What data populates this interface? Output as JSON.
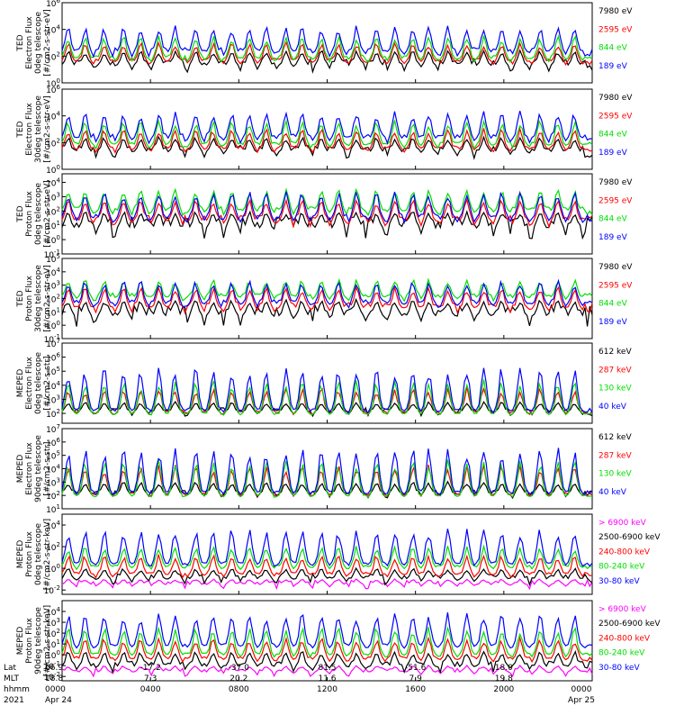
{
  "chart_data": {
    "type": "line",
    "x_axis": {
      "columns": [
        {
          "lat": "66.9",
          "mlt": "18.8",
          "hhmm": "0000",
          "date": "Apr 24"
        },
        {
          "lat": "-17.2",
          "mlt": "7.3",
          "hhmm": "0400",
          "date": ""
        },
        {
          "lat": "-37.0",
          "mlt": "20.2",
          "hhmm": "0800",
          "date": ""
        },
        {
          "lat": "81.5",
          "mlt": "11.6",
          "hhmm": "1200",
          "date": ""
        },
        {
          "lat": "-51.6",
          "mlt": "7.9",
          "hhmm": "1600",
          "date": ""
        },
        {
          "lat": "18.0",
          "mlt": "19.8",
          "hhmm": "2000",
          "date": ""
        },
        {
          "lat": "",
          "mlt": "",
          "hhmm": "0000",
          "date": "Apr 25"
        }
      ],
      "row_labels": {
        "lat": "Lat",
        "mlt": "MLT",
        "hhmm": "hhmm",
        "year": "2021"
      },
      "xlim_hours": [
        0,
        24
      ]
    },
    "panels": [
      {
        "ylabel": [
          "TED",
          "Electron Flux",
          "0deg telescope",
          "[#/cm2-s-str-eV]"
        ],
        "yticks": [
          "10^0",
          "10^2",
          "10^4",
          "10^6"
        ],
        "ylim_log10": [
          0,
          6
        ],
        "series": [
          {
            "name": "7980 eV",
            "color": "#000000",
            "base": 1.3,
            "peak": 2.4,
            "noise": 0.5
          },
          {
            "name": "2595 eV",
            "color": "#ff0000",
            "base": 1.6,
            "peak": 3.0,
            "noise": 0.25
          },
          {
            "name": "844 eV",
            "color": "#00dd00",
            "base": 1.8,
            "peak": 3.5,
            "noise": 0.25
          },
          {
            "name": "189 eV",
            "color": "#0000ff",
            "base": 2.3,
            "peak": 4.2,
            "noise": 0.35
          }
        ]
      },
      {
        "ylabel": [
          "TED",
          "Electron Flux",
          "30deg telescope",
          "[#/cm2-s-str-eV]"
        ],
        "yticks": [
          "10^0",
          "10^2",
          "10^4",
          "10^6"
        ],
        "ylim_log10": [
          0,
          6
        ],
        "series": [
          {
            "name": "7980 eV",
            "color": "#000000",
            "base": 1.3,
            "peak": 2.4,
            "noise": 0.5
          },
          {
            "name": "2595 eV",
            "color": "#ff0000",
            "base": 1.5,
            "peak": 3.0,
            "noise": 0.25
          },
          {
            "name": "844 eV",
            "color": "#00dd00",
            "base": 1.8,
            "peak": 3.6,
            "noise": 0.25
          },
          {
            "name": "189 eV",
            "color": "#0000ff",
            "base": 2.3,
            "peak": 4.3,
            "noise": 0.35
          }
        ]
      },
      {
        "ylabel": [
          "TED",
          "Proton Flux",
          "0deg telescope",
          "[#/cm2-s-str-eV]"
        ],
        "yticks": [
          "10^-1",
          "10^0",
          "10^1",
          "10^2",
          "10^3",
          "10^4"
        ],
        "ylim_log10": [
          -1,
          4.6
        ],
        "series": [
          {
            "name": "7980 eV",
            "color": "#000000",
            "base": 0.8,
            "peak": 2.0,
            "noise": 0.8
          },
          {
            "name": "2595 eV",
            "color": "#ff0000",
            "base": 1.3,
            "peak": 2.8,
            "noise": 0.4
          },
          {
            "name": "844 eV",
            "color": "#00dd00",
            "base": 2.0,
            "peak": 3.5,
            "noise": 0.3
          },
          {
            "name": "189 eV",
            "color": "#0000ff",
            "base": 1.5,
            "peak": 3.3,
            "noise": 0.3
          }
        ]
      },
      {
        "ylabel": [
          "TED",
          "Proton Flux",
          "30deg telescope",
          "[#/cm2-s-str-eV]"
        ],
        "yticks": [
          "10^-1",
          "10^0",
          "10^1",
          "10^2",
          "10^3",
          "10^4",
          "10^5"
        ],
        "ylim_log10": [
          -1,
          5
        ],
        "series": [
          {
            "name": "7980 eV",
            "color": "#000000",
            "base": 0.7,
            "peak": 1.9,
            "noise": 0.8
          },
          {
            "name": "2595 eV",
            "color": "#ff0000",
            "base": 1.3,
            "peak": 2.8,
            "noise": 0.4
          },
          {
            "name": "844 eV",
            "color": "#00dd00",
            "base": 2.1,
            "peak": 3.4,
            "noise": 0.3
          },
          {
            "name": "189 eV",
            "color": "#0000ff",
            "base": 1.6,
            "peak": 3.3,
            "noise": 0.3
          }
        ]
      },
      {
        "ylabel": [
          "MEPED",
          "Electron Flux",
          "0deg telescope",
          "[#/cm2-s-str]"
        ],
        "yticks": [
          "10^2",
          "10^3",
          "10^4",
          "10^5",
          "10^6",
          "10^7"
        ],
        "ylim_log10": [
          1.3,
          7
        ],
        "series": [
          {
            "name": "612 keV",
            "color": "#000000",
            "base": 2.1,
            "peak": 2.8,
            "noise": 0.3
          },
          {
            "name": "287 keV",
            "color": "#ff0000",
            "base": 2.05,
            "peak": 3.8,
            "noise": 0.15
          },
          {
            "name": "130 keV",
            "color": "#00dd00",
            "base": 1.95,
            "peak": 4.3,
            "noise": 0.08
          },
          {
            "name": "40 keV",
            "color": "#0000ff",
            "base": 2.2,
            "peak": 5.2,
            "noise": 0.15
          }
        ]
      },
      {
        "ylabel": [
          "MEPED",
          "Electron Flux",
          "90deg telescope",
          "[#/cm2-s-str]"
        ],
        "yticks": [
          "10^1",
          "10^2",
          "10^3",
          "10^4",
          "10^5",
          "10^6",
          "10^7"
        ],
        "ylim_log10": [
          1,
          7
        ],
        "series": [
          {
            "name": "612 keV",
            "color": "#000000",
            "base": 2.1,
            "peak": 3.0,
            "noise": 0.3
          },
          {
            "name": "287 keV",
            "color": "#ff0000",
            "base": 2.05,
            "peak": 4.2,
            "noise": 0.15
          },
          {
            "name": "130 keV",
            "color": "#00dd00",
            "base": 1.95,
            "peak": 4.6,
            "noise": 0.08
          },
          {
            "name": "40 keV",
            "color": "#0000ff",
            "base": 2.2,
            "peak": 5.5,
            "noise": 0.15
          }
        ]
      },
      {
        "ylabel": [
          "MEPED",
          "Proton Flux",
          "0deg telescope",
          "[#/cm2-s-str-keV]"
        ],
        "yticks": [
          "10^-2",
          "10^0",
          "10^2",
          "10^4"
        ],
        "ylim_log10": [
          -2.4,
          5
        ],
        "series": [
          {
            "name": "> 6900 keV",
            "color": "#ff00ff",
            "base": -1.5,
            "peak": -1.0,
            "noise": 0.4
          },
          {
            "name": "2500-6900 keV",
            "color": "#000000",
            "base": -1.0,
            "peak": 0.0,
            "noise": 0.5
          },
          {
            "name": "240-800 keV",
            "color": "#ff0000",
            "base": -0.6,
            "peak": 1.2,
            "noise": 0.25
          },
          {
            "name": "80-240 keV",
            "color": "#00dd00",
            "base": 0.1,
            "peak": 2.0,
            "noise": 0.2
          },
          {
            "name": "30-80 keV",
            "color": "#0000ff",
            "base": 0.4,
            "peak": 3.6,
            "noise": 0.2
          }
        ]
      },
      {
        "ylabel": [
          "MEPED",
          "Proton Flux",
          "90deg telescope",
          "[#/cm2-s-str-keV]"
        ],
        "yticks": [
          "10^-2",
          "10^-1",
          "10^0",
          "10^1",
          "10^2",
          "10^3",
          "10^4"
        ],
        "ylim_log10": [
          -2.4,
          5
        ],
        "series": [
          {
            "name": "> 6900 keV",
            "color": "#ff00ff",
            "base": -1.6,
            "peak": -1.0,
            "noise": 0.4
          },
          {
            "name": "2500-6900 keV",
            "color": "#000000",
            "base": -1.1,
            "peak": 0.3,
            "noise": 0.5
          },
          {
            "name": "240-800 keV",
            "color": "#ff0000",
            "base": -0.4,
            "peak": 1.5,
            "noise": 0.25
          },
          {
            "name": "80-240 keV",
            "color": "#00dd00",
            "base": 0.0,
            "peak": 2.5,
            "noise": 0.2
          },
          {
            "name": "30-80 keV",
            "color": "#0000ff",
            "base": 0.8,
            "peak": 3.8,
            "noise": 0.2
          }
        ]
      }
    ],
    "grid": false,
    "legend_placement": "right"
  }
}
